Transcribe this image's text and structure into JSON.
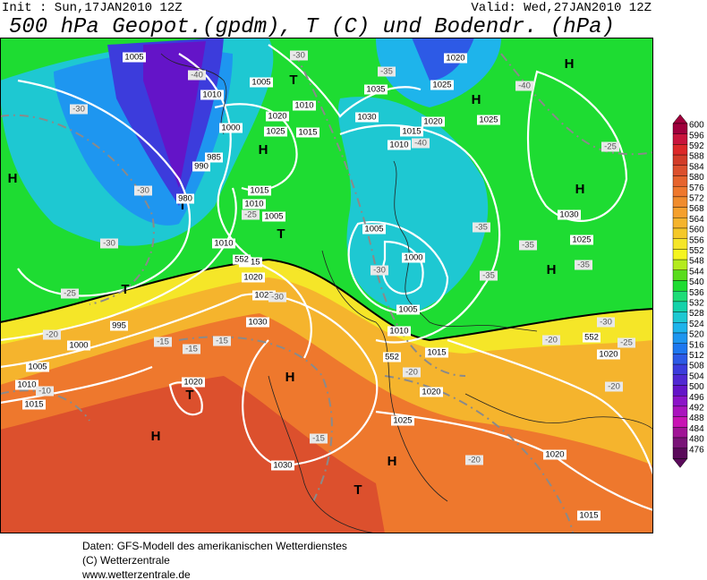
{
  "header": {
    "init": "Init : Sun,17JAN2010 12Z",
    "valid": "Valid: Wed,27JAN2010 12Z",
    "title": "500 hPa Geopot.(gpdm), T (C) und Bodendr. (hPa)"
  },
  "legend": {
    "values": [
      "600",
      "596",
      "592",
      "588",
      "584",
      "580",
      "576",
      "572",
      "568",
      "564",
      "560",
      "556",
      "552",
      "548",
      "544",
      "540",
      "536",
      "532",
      "528",
      "524",
      "520",
      "516",
      "512",
      "508",
      "504",
      "500",
      "496",
      "492",
      "488",
      "484",
      "480",
      "476"
    ],
    "colors": [
      "#a0003c",
      "#c8143c",
      "#dc2828",
      "#d23c28",
      "#dc502d",
      "#e6642d",
      "#ee782d",
      "#f08c2d",
      "#f5a02d",
      "#f5b42d",
      "#f5c828",
      "#f5e628",
      "#f5f51e",
      "#b4eb1e",
      "#5adc1e",
      "#1edc32",
      "#1edc78",
      "#14d2aa",
      "#1ec8d2",
      "#1eb4eb",
      "#1e96f0",
      "#1e78f0",
      "#2d5ae6",
      "#3c3cdc",
      "#5028d2",
      "#6414c8",
      "#8c14c8",
      "#aa14be",
      "#c814b4",
      "#a01496",
      "#7a1478",
      "#5a0a5a"
    ]
  },
  "map_labels": [
    "H",
    "H",
    "H",
    "H",
    "H",
    "H",
    "H",
    "H",
    "H",
    "T",
    "T",
    "T",
    "T",
    "T",
    "T",
    "1005",
    "1010",
    "1005",
    "1020",
    "1025",
    "1015",
    "1010",
    "1000",
    "985",
    "990",
    "980",
    "995",
    "1000",
    "1005",
    "1010",
    "1015",
    "1010",
    "1015",
    "1020",
    "1025",
    "1030",
    "1020",
    "1030",
    "1025",
    "1020",
    "1015",
    "1010",
    "1005",
    "1000",
    "1005",
    "1010",
    "1015",
    "1020",
    "1035",
    "1030",
    "1025",
    "1020",
    "1025",
    "1030",
    "1025",
    "1020",
    "1020",
    "1015",
    "1015",
    "1010",
    "1005",
    "-30",
    "-30",
    "-30",
    "-25",
    "-25",
    "-20",
    "-15",
    "-15",
    "-15",
    "-10",
    "-40",
    "-30",
    "-35",
    "-40",
    "-40",
    "-35",
    "-35",
    "-35",
    "-35",
    "-30",
    "-30",
    "-20",
    "-25",
    "-20",
    "-20",
    "-15",
    "-20",
    "-25",
    "-30",
    "552",
    "552",
    "552"
  ],
  "footer": [
    "Daten: GFS-Modell des amerikanischen Wetterdienstes",
    "(C) Wetterzentrale",
    "www.wetterzentrale.de"
  ]
}
